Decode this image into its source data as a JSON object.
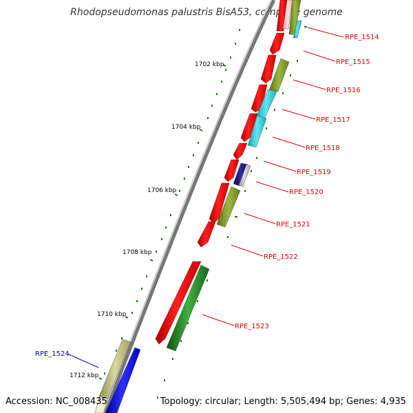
{
  "title": "Rhodopseudomonas palustris BisA53, complete genome",
  "accession": "Accession: NC_008435",
  "summary": "Topology: circular; Length: 5,505,494 bp; Genes: 4,935",
  "kbp_labels": [
    "1702 kbp",
    "1704 kbp",
    "1706 kbp",
    "1708 kbp",
    "1710 kbp",
    "1712 kbp"
  ],
  "gene_labels": [
    {
      "text": "RPE_1514",
      "color": "#dd0000"
    },
    {
      "text": "RPE_1515",
      "color": "#dd0000"
    },
    {
      "text": "RPE_1516",
      "color": "#dd0000"
    },
    {
      "text": "RPE_1517",
      "color": "#dd0000"
    },
    {
      "text": "RPE_1518",
      "color": "#dd0000"
    },
    {
      "text": "RPE_1519",
      "color": "#dd0000"
    },
    {
      "text": "RPE_1520",
      "color": "#dd0000"
    },
    {
      "text": "RPE_1521",
      "color": "#dd0000"
    },
    {
      "text": "RPE_1522",
      "color": "#dd0000"
    },
    {
      "text": "RPE_1523",
      "color": "#dd0000"
    },
    {
      "text": "RPE_1524",
      "color": "#0000cc"
    }
  ],
  "colors": {
    "backbone": "#8a8a8a",
    "red_cds": "#ff0000",
    "olive": "#7f9a2a",
    "cyan": "#22c8d8",
    "dark_green": "#2a8a2a",
    "navy": "#101080",
    "blue": "#0000ff",
    "khaki": "#b8b878",
    "tick": "#1a7a1a"
  }
}
